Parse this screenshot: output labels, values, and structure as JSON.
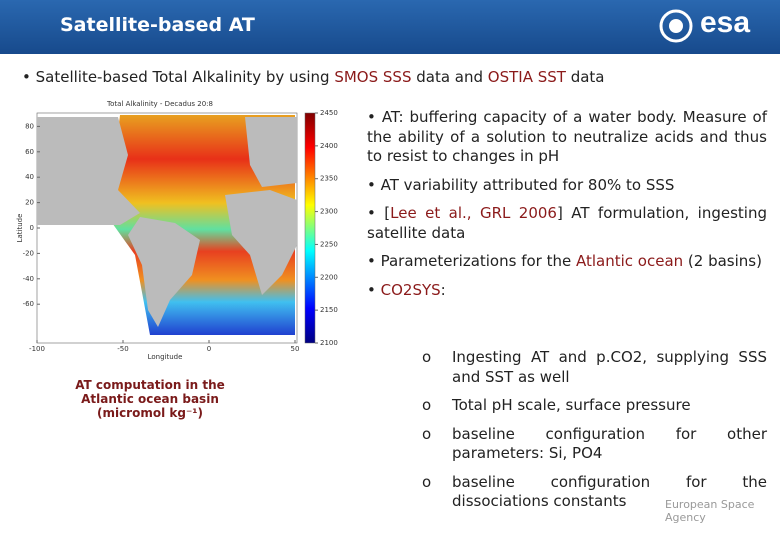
{
  "header": {
    "title": "Satellite-based AT",
    "logo": "esa"
  },
  "intro": [
    {
      "text": "• Satellite-based Total Alkalinity by using ",
      "em": false
    },
    {
      "text": "SMOS SSS",
      "em": true
    },
    {
      "text": " data and ",
      "em": false
    },
    {
      "text": "OSTIA SST",
      "em": true
    },
    {
      "text": " data",
      "em": false
    }
  ],
  "map": {
    "title": "Total Alkalinity - Decadus 20:8",
    "ylabel": "Latitude",
    "xlabel": "Longitude",
    "xticks": [
      -100,
      -50,
      0,
      50
    ],
    "yticks": [
      80,
      60,
      40,
      20,
      0,
      -20,
      -40,
      -60
    ],
    "colorbar": [
      2450,
      2400,
      2350,
      2300,
      2250,
      2200,
      2150,
      2100
    ]
  },
  "caption": "AT computation in the Atlantic ocean basin (micromol kg⁻¹)",
  "bullets": [
    [
      {
        "text": "• AT: buffering capacity of a water body. Measure of the ability of a solution to neutralize acids and thus to resist to changes in pH",
        "em": false
      }
    ],
    [
      {
        "text": "• AT variability attributed for 80% to SSS",
        "em": false
      }
    ],
    [
      {
        "text": "• [",
        "em": false
      },
      {
        "text": "Lee et al., GRL 2006",
        "em": true
      },
      {
        "text": "] AT formulation, ingesting satellite data",
        "em": false
      }
    ],
    [
      {
        "text": "• Parameterizations for the ",
        "em": false
      },
      {
        "text": "Atlantic ocean",
        "em": true
      },
      {
        "text": " (2 basins)",
        "em": false
      }
    ],
    [
      {
        "text": "• ",
        "em": false
      },
      {
        "text": "CO2SYS",
        "em": true
      },
      {
        "text": ":",
        "em": false
      }
    ]
  ],
  "subbullets": {
    "marker": "o",
    "items": [
      "Ingesting AT and p.CO2, supplying SSS and SST as well",
      "Total pH scale, surface pressure",
      "baseline configuration for other parameters: Si, PO4",
      "baseline configuration for the dissociations constants"
    ]
  },
  "footer": "European Space Agency"
}
